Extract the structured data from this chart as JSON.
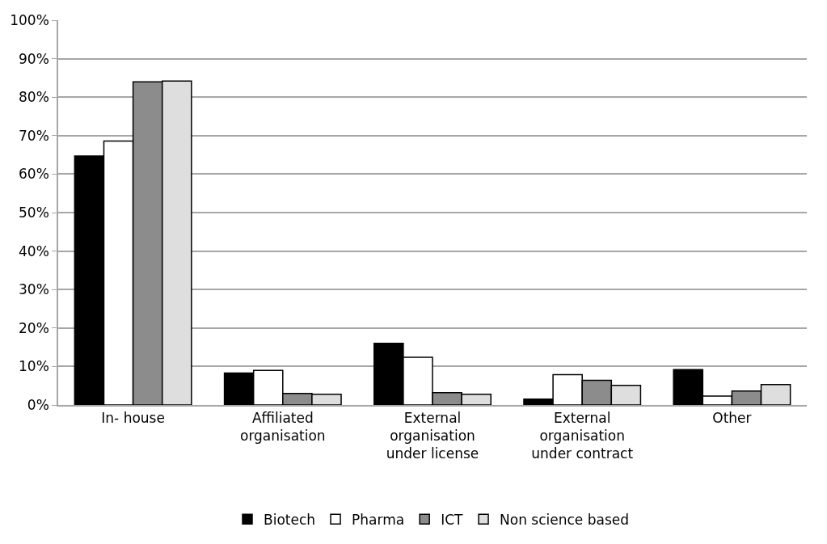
{
  "chart_data": {
    "type": "bar",
    "categories": [
      "In- house",
      "Affiliated organisation",
      "External organisation under license",
      "External organisation under contract",
      "Other"
    ],
    "series": [
      {
        "name": "Biotech",
        "color": "#000000",
        "values": [
          64.7,
          8.3,
          16.0,
          1.5,
          9.2
        ]
      },
      {
        "name": "Pharma",
        "color": "#ffffff",
        "values": [
          68.6,
          9.0,
          12.4,
          7.9,
          2.3
        ]
      },
      {
        "name": "ICT",
        "color": "#8c8c8c",
        "values": [
          84.0,
          3.0,
          3.2,
          6.4,
          3.6
        ]
      },
      {
        "name": "Non science based",
        "color": "#dedede",
        "values": [
          84.2,
          2.8,
          2.8,
          5.1,
          5.3
        ]
      }
    ],
    "ylim": [
      0,
      100
    ],
    "yticks": [
      {
        "value": 0,
        "label": "0%"
      },
      {
        "value": 10,
        "label": "10%"
      },
      {
        "value": 20,
        "label": "20%"
      },
      {
        "value": 30,
        "label": "30%"
      },
      {
        "value": 40,
        "label": "40%"
      },
      {
        "value": 50,
        "label": "50%"
      },
      {
        "value": 60,
        "label": "60%"
      },
      {
        "value": 70,
        "label": "70%"
      },
      {
        "value": 80,
        "label": "80%"
      },
      {
        "value": 90,
        "label": "90%"
      },
      {
        "value": 100,
        "label": "100%"
      }
    ],
    "grid": "y",
    "legend": "bottom"
  }
}
